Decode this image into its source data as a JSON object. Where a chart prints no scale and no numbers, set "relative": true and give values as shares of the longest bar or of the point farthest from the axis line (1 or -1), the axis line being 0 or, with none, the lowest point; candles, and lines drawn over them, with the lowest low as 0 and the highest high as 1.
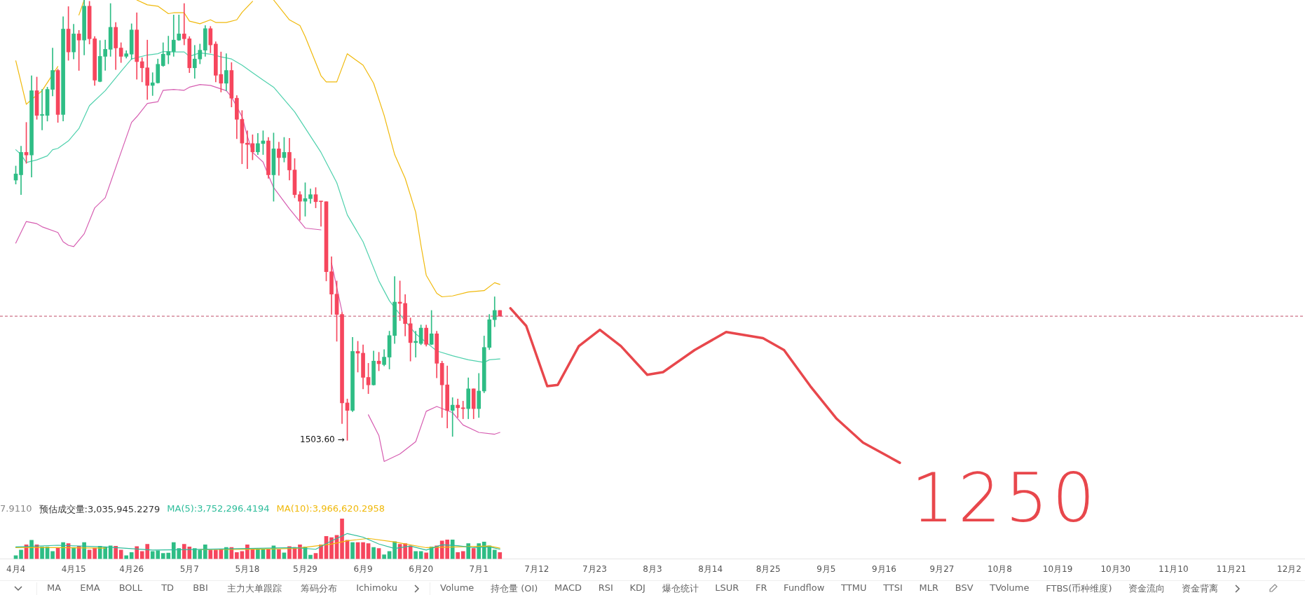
{
  "chart_data": [
    {
      "type": "candlestick",
      "relative": true,
      "tick_labels": false,
      "xlim": [
        "--04-01",
        "--12-05"
      ],
      "x": [
        "--04-04",
        "--04-05",
        "--04-06",
        "--04-07",
        "--04-08",
        "--04-09",
        "--04-10",
        "--04-11",
        "--04-12",
        "--04-13",
        "--04-14",
        "--04-15",
        "--04-16",
        "--04-17",
        "--04-18",
        "--04-19",
        "--04-20",
        "--04-21",
        "--04-22",
        "--04-23",
        "--04-24",
        "--04-25",
        "--04-26",
        "--04-27",
        "--04-28",
        "--04-29",
        "--04-30",
        "--05-01",
        "--05-02",
        "--05-03",
        "--05-04",
        "--05-05",
        "--05-06",
        "--05-07",
        "--05-08",
        "--05-09",
        "--05-10",
        "--05-11",
        "--05-12",
        "--05-13",
        "--05-14",
        "--05-15",
        "--05-16",
        "--05-17",
        "--05-18",
        "--05-19",
        "--05-20",
        "--05-21",
        "--05-22",
        "--05-23",
        "--05-24",
        "--05-25",
        "--05-26",
        "--05-27",
        "--05-28",
        "--05-29",
        "--05-30",
        "--05-31",
        "--06-01",
        "--06-02",
        "--06-03",
        "--06-04",
        "--06-05",
        "--06-06",
        "--06-07",
        "--06-08",
        "--06-09",
        "--06-10",
        "--06-11",
        "--06-12",
        "--06-13",
        "--06-14",
        "--06-15",
        "--06-16",
        "--06-17",
        "--06-18",
        "--06-19",
        "--06-20",
        "--06-21",
        "--06-22",
        "--06-23",
        "--06-24",
        "--06-25",
        "--06-26",
        "--06-27",
        "--06-28",
        "--06-29",
        "--06-30",
        "--07-01",
        "--07-02",
        "--07-03",
        "--07-04",
        "--07-05"
      ],
      "ohlc": [
        [
          0.591,
          0.623,
          0.582,
          0.605
        ],
        [
          0.603,
          0.668,
          0.558,
          0.654
        ],
        [
          0.654,
          0.722,
          0.629,
          0.648
        ],
        [
          0.648,
          0.828,
          0.598,
          0.794
        ],
        [
          0.794,
          0.825,
          0.729,
          0.738
        ],
        [
          0.738,
          0.797,
          0.705,
          0.74
        ],
        [
          0.738,
          0.802,
          0.725,
          0.797
        ],
        [
          0.797,
          0.891,
          0.782,
          0.84
        ],
        [
          0.84,
          0.843,
          0.722,
          0.74
        ],
        [
          0.74,
          0.962,
          0.725,
          0.934
        ],
        [
          0.934,
          0.985,
          0.863,
          0.882
        ],
        [
          0.882,
          0.945,
          0.866,
          0.923
        ],
        [
          0.923,
          0.931,
          0.84,
          0.909
        ],
        [
          0.909,
          1,
          0.875,
          0.986
        ],
        [
          0.986,
          0.997,
          0.9,
          0.912
        ],
        [
          0.912,
          0.917,
          0.806,
          0.818
        ],
        [
          0.815,
          0.908,
          0.814,
          0.872
        ],
        [
          0.872,
          0.909,
          0.84,
          0.888
        ],
        [
          0.888,
          0.992,
          0.872,
          0.938
        ],
        [
          0.938,
          0.949,
          0.842,
          0.891
        ],
        [
          0.891,
          0.903,
          0.858,
          0.872
        ],
        [
          0.872,
          0.885,
          0.868,
          0.878
        ],
        [
          0.877,
          0.946,
          0.865,
          0.932
        ],
        [
          0.932,
          0.971,
          0.82,
          0.86
        ],
        [
          0.86,
          0.869,
          0.814,
          0.846
        ],
        [
          0.846,
          0.909,
          0.774,
          0.806
        ],
        [
          0.806,
          0.835,
          0.783,
          0.812
        ],
        [
          0.812,
          0.866,
          0.811,
          0.854
        ],
        [
          0.851,
          0.903,
          0.849,
          0.877
        ],
        [
          0.875,
          0.918,
          0.855,
          0.883
        ],
        [
          0.883,
          0.966,
          0.872,
          0.909
        ],
        [
          0.909,
          0.966,
          0.908,
          0.923
        ],
        [
          0.923,
          0.992,
          0.898,
          0.912
        ],
        [
          0.912,
          0.917,
          0.835,
          0.846
        ],
        [
          0.846,
          0.897,
          0.822,
          0.866
        ],
        [
          0.866,
          0.9,
          0.855,
          0.886
        ],
        [
          0.886,
          0.942,
          0.872,
          0.935
        ],
        [
          0.935,
          0.94,
          0.88,
          0.898
        ],
        [
          0.9,
          0.905,
          0.814,
          0.829
        ],
        [
          0.831,
          0.882,
          0.791,
          0.811
        ],
        [
          0.811,
          0.878,
          0.794,
          0.84
        ],
        [
          0.84,
          0.858,
          0.757,
          0.777
        ],
        [
          0.777,
          0.783,
          0.685,
          0.729
        ],
        [
          0.729,
          0.749,
          0.628,
          0.675
        ],
        [
          0.675,
          0.703,
          0.617,
          0.672
        ],
        [
          0.674,
          0.694,
          0.637,
          0.655
        ],
        [
          0.655,
          0.697,
          0.649,
          0.674
        ],
        [
          0.674,
          0.703,
          0.649,
          0.68
        ],
        [
          0.68,
          0.688,
          0.595,
          0.603
        ],
        [
          0.603,
          0.698,
          0.543,
          0.662
        ],
        [
          0.662,
          0.677,
          0.602,
          0.642
        ],
        [
          0.642,
          0.688,
          0.632,
          0.654
        ],
        [
          0.654,
          0.686,
          0.591,
          0.614
        ],
        [
          0.614,
          0.64,
          0.551,
          0.558
        ],
        [
          0.558,
          0.565,
          0.5,
          0.543
        ],
        [
          0.543,
          0.585,
          0.509,
          0.549
        ],
        [
          0.549,
          0.571,
          0.538,
          0.558
        ],
        [
          0.558,
          0.574,
          0.528,
          0.542
        ],
        [
          0.543,
          0.543,
          0.486,
          0.542
        ],
        [
          0.542,
          0.542,
          0.362,
          0.383
        ],
        [
          0.383,
          0.417,
          0.286,
          0.332
        ],
        [
          0.332,
          0.362,
          0.225,
          0.286
        ],
        [
          0.286,
          0.291,
          0.038,
          0.085
        ],
        [
          0.085,
          0.094,
          0,
          0.068
        ],
        [
          0.068,
          0.234,
          0.065,
          0.202
        ],
        [
          0.202,
          0.225,
          0.155,
          0.198
        ],
        [
          0.198,
          0.217,
          0.117,
          0.143
        ],
        [
          0.143,
          0.175,
          0.106,
          0.126
        ],
        [
          0.126,
          0.203,
          0.125,
          0.18
        ],
        [
          0.18,
          0.2,
          0.158,
          0.174
        ],
        [
          0.172,
          0.206,
          0.169,
          0.189
        ],
        [
          0.189,
          0.248,
          0.162,
          0.238
        ],
        [
          0.238,
          0.372,
          0.22,
          0.314
        ],
        [
          0.314,
          0.362,
          0.272,
          0.311
        ],
        [
          0.311,
          0.331,
          0.237,
          0.265
        ],
        [
          0.265,
          0.278,
          0.18,
          0.222
        ],
        [
          0.222,
          0.248,
          0.189,
          0.225
        ],
        [
          0.22,
          0.262,
          0.217,
          0.255
        ],
        [
          0.255,
          0.262,
          0.214,
          0.218
        ],
        [
          0.218,
          0.295,
          0.217,
          0.242
        ],
        [
          0.242,
          0.248,
          0.142,
          0.175
        ],
        [
          0.175,
          0.18,
          0.052,
          0.126
        ],
        [
          0.126,
          0.169,
          0.028,
          0.068
        ],
        [
          0.068,
          0.097,
          0.009,
          0.08
        ],
        [
          0.08,
          0.094,
          0.052,
          0.074
        ],
        [
          0.074,
          0.089,
          0.049,
          0.072
        ],
        [
          0.072,
          0.142,
          0.049,
          0.117
        ],
        [
          0.117,
          0.117,
          0.049,
          0.072
        ],
        [
          0.072,
          0.152,
          0.052,
          0.112
        ],
        [
          0.112,
          0.237,
          0.108,
          0.211
        ],
        [
          0.211,
          0.286,
          0.206,
          0.274
        ],
        [
          0.274,
          0.326,
          0.258,
          0.295
        ],
        [
          0.295,
          0.295,
          0.282,
          0.282
        ]
      ],
      "colors": [
        "#2ebd85",
        "#2ebd85",
        "#f6465d",
        "#2ebd85",
        "#f6465d",
        "#2ebd85",
        "#2ebd85",
        "#2ebd85",
        "#f6465d",
        "#2ebd85",
        "#f6465d",
        "#2ebd85",
        "#f6465d",
        "#2ebd85",
        "#f6465d",
        "#f6465d",
        "#2ebd85",
        "#2ebd85",
        "#2ebd85",
        "#f6465d",
        "#f6465d",
        "#2ebd85",
        "#2ebd85",
        "#f6465d",
        "#f6465d",
        "#f6465d",
        "#2ebd85",
        "#2ebd85",
        "#2ebd85",
        "#2ebd85",
        "#2ebd85",
        "#2ebd85",
        "#f6465d",
        "#f6465d",
        "#2ebd85",
        "#2ebd85",
        "#2ebd85",
        "#f6465d",
        "#f6465d",
        "#f6465d",
        "#2ebd85",
        "#f6465d",
        "#f6465d",
        "#f6465d",
        "#f6465d",
        "#f6465d",
        "#2ebd85",
        "#2ebd85",
        "#f6465d",
        "#2ebd85",
        "#f6465d",
        "#2ebd85",
        "#f6465d",
        "#f6465d",
        "#f6465d",
        "#2ebd85",
        "#2ebd85",
        "#f6465d",
        "#f6465d",
        "#f6465d",
        "#f6465d",
        "#f6465d",
        "#f6465d",
        "#f6465d",
        "#2ebd85",
        "#f6465d",
        "#f6465d",
        "#f6465d",
        "#2ebd85",
        "#f6465d",
        "#2ebd85",
        "#2ebd85",
        "#2ebd85",
        "#f6465d",
        "#f6465d",
        "#f6465d",
        "#2ebd85",
        "#2ebd85",
        "#f6465d",
        "#2ebd85",
        "#f6465d",
        "#f6465d",
        "#f6465d",
        "#2ebd85",
        "#f6465d",
        "#f6465d",
        "#2ebd85",
        "#f6465d",
        "#2ebd85",
        "#2ebd85",
        "#2ebd85",
        "#2ebd85",
        "#f6465d"
      ],
      "series": [
        {
          "type": "line",
          "color": "#f0b90b",
          "x": [
            "--04-04",
            "--04-06",
            "--04-07",
            "--04-09",
            "--04-12",
            "--04-14",
            "--04-16",
            "--04-17",
            "--04-22",
            "--04-27",
            "--04-29",
            "--05-01",
            "--05-03",
            "--05-04",
            "--05-06",
            "--05-07",
            "--05-09",
            "--05-11",
            "--05-12",
            "--05-14",
            "--05-16",
            "--05-17",
            "--05-19",
            "--05-21",
            "--05-23",
            "--05-26",
            "--05-28",
            "--05-29",
            "--06-01",
            "--06-02",
            "--06-04",
            "--06-06",
            "--06-09",
            "--06-11",
            "--06-13",
            "--06-15",
            "--06-17",
            "--06-19",
            "--06-20",
            "--06-21",
            "--06-23",
            "--06-24",
            "--06-26",
            "--06-29",
            "--07-02",
            "--07-04",
            "--07-05"
          ],
          "values": [
            0.862,
            0.763,
            0.774,
            0.794,
            0.849,
            null,
            0.966,
            1,
            null,
            1,
            0.989,
            0.986,
            0.969,
            0.971,
            0.971,
            0.952,
            0.946,
            0.955,
            0.949,
            0.949,
            0.955,
            0.972,
            0.997,
            null,
            1,
            0.955,
            0.942,
            0.917,
            0.828,
            0.814,
            0.814,
            0.878,
            0.852,
            0.811,
            0.738,
            0.649,
            0.595,
            0.518,
            0.443,
            0.375,
            0.334,
            0.326,
            0.328,
            0.337,
            0.34,
            0.358,
            0.354
          ]
        },
        {
          "type": "line",
          "color": "#4fd1ad",
          "x": [
            "--04-04",
            "--04-05",
            "--04-06",
            "--04-08",
            "--04-10",
            "--04-11",
            "--04-12",
            "--04-14",
            "--04-16",
            "--04-18",
            "--04-21",
            "--04-24",
            "--04-26",
            "--04-29",
            "--05-01",
            "--05-02",
            "--05-04",
            "--05-06",
            "--05-07",
            "--05-09",
            "--05-11",
            "--05-13",
            "--05-15",
            "--05-17",
            "--05-19",
            "--05-21",
            "--05-23",
            "--05-27",
            "--06-01",
            "--06-04",
            "--06-06",
            "--06-09",
            "--06-12",
            "--06-14",
            "--06-16",
            "--06-19",
            "--06-23",
            "--06-26",
            "--06-29",
            "--07-02",
            "--07-03",
            "--07-05"
          ],
          "values": [
            0.66,
            0.649,
            0.631,
            0.637,
            0.646,
            0.66,
            0.663,
            0.68,
            0.708,
            0.76,
            0.794,
            0.838,
            0.866,
            0.875,
            0.878,
            0.883,
            0.882,
            0.882,
            0.872,
            0.88,
            0.877,
            0.871,
            0.866,
            0.852,
            0.835,
            0.818,
            0.802,
            0.746,
            0.654,
            0.585,
            0.512,
            0.451,
            0.362,
            0.317,
            0.286,
            0.242,
            0.203,
            0.192,
            0.183,
            0.177,
            0.183,
            0.185
          ]
        },
        {
          "type": "line",
          "color": "#d65db1",
          "x": [
            "--04-04",
            "--04-06",
            "--04-08",
            "--04-09",
            "--04-12",
            "--04-13",
            "--04-14",
            "--04-15",
            "--04-17",
            "--04-19",
            "--04-21",
            "--04-24",
            "--04-26",
            "--04-27",
            "--04-29",
            "--05-01",
            "--05-02",
            "--05-04",
            "--05-06",
            "--05-07",
            "--05-09",
            "--05-11",
            "--05-12",
            "--05-14",
            "--05-15",
            "--05-17",
            "--05-18",
            "--05-19",
            "--05-21",
            "--05-22",
            "--05-23",
            "--05-26",
            "--05-29",
            "--06-01",
            "--06-02",
            "--06-03",
            "--06-05",
            "--06-07",
            "--06-10",
            "--06-12",
            "--06-13",
            "--06-16",
            "--06-19",
            "--06-21",
            "--06-23",
            "--06-26",
            "--06-28",
            "--07-01",
            "--07-04",
            "--07-05"
          ],
          "values": [
            0.448,
            0.497,
            0.492,
            0.485,
            0.472,
            0.451,
            0.443,
            0.44,
            0.469,
            0.528,
            0.551,
            0.654,
            0.722,
            0.735,
            0.765,
            0.769,
            0.795,
            0.797,
            0.795,
            0.802,
            0.808,
            0.806,
            0.802,
            0.794,
            0.78,
            0.735,
            0.691,
            0.654,
            0.632,
            0.602,
            0.574,
            0.526,
            0.482,
            0.478,
            null,
            0.403,
            0.292,
            null,
            0.058,
            0.011,
            -0.048,
            -0.031,
            -0.003,
            0.066,
            0.077,
            0.063,
            0.035,
            0.018,
            0.014,
            0.018
          ]
        },
        {
          "type": "line",
          "color": "#e8474c",
          "x": [
            "--07-07",
            "--07-10",
            "--07-14",
            "--07-16",
            "--07-20",
            "--07-24",
            "--07-28",
            "--08-02",
            "--08-05",
            "--08-11",
            "--08-17",
            "--08-24",
            "--08-28",
            "--09-02",
            "--09-07",
            "--09-12",
            "--09-19"
          ],
          "values": [
            0.3,
            0.26,
            0.123,
            0.126,
            0.214,
            0.251,
            0.214,
            0.149,
            0.155,
            0.205,
            0.246,
            0.232,
            0.205,
            0.123,
            0.049,
            -0.005,
            -0.051
          ]
        }
      ],
      "ref_lines": [
        {
          "axis": "y",
          "value": 0.282,
          "color": "#c0506a",
          "line_style": "dashed"
        }
      ],
      "annotations": [
        {
          "text": "1503.60 →",
          "x": "--06-06",
          "y": 0
        },
        "1250"
      ]
    },
    {
      "type": "bar",
      "relative": true,
      "tick_labels": "x",
      "legend": "top left",
      "xlim": [
        "--04-01",
        "--12-05"
      ],
      "xticks": [
        {
          "value": "--04-04",
          "label": "4月4"
        },
        {
          "value": "--04-15",
          "label": "4月15"
        },
        {
          "value": "--04-26",
          "label": "4月26"
        },
        {
          "value": "--05-07",
          "label": "5月7"
        },
        {
          "value": "--05-18",
          "label": "5月18"
        },
        {
          "value": "--05-29",
          "label": "5月29"
        },
        {
          "value": "--06-09",
          "label": "6月9"
        },
        {
          "value": "--06-20",
          "label": "6月20"
        },
        {
          "value": "--07-01",
          "label": "7月1"
        },
        {
          "value": "--07-12",
          "label": "7月12"
        },
        {
          "value": "--07-23",
          "label": "7月23"
        },
        {
          "value": "--08-03",
          "label": "8月3"
        },
        {
          "value": "--08-14",
          "label": "8月14"
        },
        {
          "value": "--08-25",
          "label": "8月25"
        },
        {
          "value": "--09-05",
          "label": "9月5"
        },
        {
          "value": "--09-16",
          "label": "9月16"
        },
        {
          "value": "--09-27",
          "label": "9月27"
        },
        {
          "value": "--10-08",
          "label": "10月8"
        },
        {
          "value": "--10-19",
          "label": "10月19"
        },
        {
          "value": "--10-30",
          "label": "10月30"
        },
        {
          "value": "--11-10",
          "label": "11月10"
        },
        {
          "value": "--11-21",
          "label": "11月21"
        },
        {
          "value": "--12-02",
          "label": "12月2"
        }
      ],
      "x": [
        "--04-04",
        "--04-05",
        "--04-06",
        "--04-07",
        "--04-08",
        "--04-09",
        "--04-10",
        "--04-11",
        "--04-12",
        "--04-13",
        "--04-14",
        "--04-15",
        "--04-16",
        "--04-17",
        "--04-18",
        "--04-19",
        "--04-20",
        "--04-21",
        "--04-22",
        "--04-23",
        "--04-24",
        "--04-25",
        "--04-26",
        "--04-27",
        "--04-28",
        "--04-29",
        "--04-30",
        "--05-01",
        "--05-02",
        "--05-03",
        "--05-04",
        "--05-05",
        "--05-06",
        "--05-07",
        "--05-08",
        "--05-09",
        "--05-10",
        "--05-11",
        "--05-12",
        "--05-13",
        "--05-14",
        "--05-15",
        "--05-16",
        "--05-17",
        "--05-18",
        "--05-19",
        "--05-20",
        "--05-21",
        "--05-22",
        "--05-23",
        "--05-24",
        "--05-25",
        "--05-26",
        "--05-27",
        "--05-28",
        "--05-29",
        "--05-30",
        "--05-31",
        "--06-01",
        "--06-02",
        "--06-03",
        "--06-04",
        "--06-05",
        "--06-06",
        "--06-07",
        "--06-08",
        "--06-09",
        "--06-10",
        "--06-11",
        "--06-12",
        "--06-13",
        "--06-14",
        "--06-15",
        "--06-16",
        "--06-17",
        "--06-18",
        "--06-19",
        "--06-20",
        "--06-21",
        "--06-22",
        "--06-23",
        "--06-24",
        "--06-25",
        "--06-26",
        "--06-27",
        "--06-28",
        "--06-29",
        "--06-30",
        "--07-01",
        "--07-02",
        "--07-03",
        "--07-04",
        "--07-05"
      ],
      "series": [
        {
          "type": "bar",
          "values": [
            0.081,
            0.22,
            0.35,
            0.463,
            0.35,
            0.301,
            0.301,
            0.187,
            0.268,
            0.407,
            0.382,
            0.285,
            0.317,
            0.407,
            0.22,
            0.268,
            0.317,
            0.285,
            0.325,
            0.317,
            0.22,
            0.081,
            0.163,
            0.309,
            0.187,
            0.366,
            0.187,
            0.203,
            0.138,
            0.146,
            0.407,
            0.26,
            0.366,
            0.301,
            0.26,
            0.22,
            0.35,
            0.22,
            0.22,
            0.236,
            0.285,
            0.285,
            0.163,
            0.187,
            0.35,
            0.236,
            0.236,
            0.236,
            0.236,
            0.325,
            0.236,
            0.154,
            0.309,
            0.285,
            0.35,
            0.301,
            0.098,
            0.138,
            0.35,
            0.561,
            0.528,
            0.585,
            1,
            0.463,
            0.407,
            0.407,
            0.407,
            0.382,
            0.285,
            0.26,
            0.106,
            0.187,
            0.431,
            0.366,
            0.382,
            0.325,
            0.187,
            0.187,
            0.154,
            0.301,
            0.325,
            0.447,
            0.472,
            0.472,
            0.163,
            0.187,
            0.382,
            0.26,
            0.382,
            0.423,
            0.325,
            0.22,
            0.163
          ],
          "colors": [
            "#2ebd85",
            "#2ebd85",
            "#f6465d",
            "#2ebd85",
            "#f6465d",
            "#2ebd85",
            "#2ebd85",
            "#2ebd85",
            "#f6465d",
            "#2ebd85",
            "#f6465d",
            "#2ebd85",
            "#f6465d",
            "#2ebd85",
            "#f6465d",
            "#f6465d",
            "#2ebd85",
            "#2ebd85",
            "#2ebd85",
            "#f6465d",
            "#f6465d",
            "#2ebd85",
            "#2ebd85",
            "#f6465d",
            "#f6465d",
            "#f6465d",
            "#2ebd85",
            "#2ebd85",
            "#2ebd85",
            "#2ebd85",
            "#2ebd85",
            "#2ebd85",
            "#f6465d",
            "#f6465d",
            "#2ebd85",
            "#2ebd85",
            "#2ebd85",
            "#f6465d",
            "#f6465d",
            "#f6465d",
            "#2ebd85",
            "#f6465d",
            "#f6465d",
            "#f6465d",
            "#f6465d",
            "#f6465d",
            "#2ebd85",
            "#2ebd85",
            "#f6465d",
            "#2ebd85",
            "#f6465d",
            "#2ebd85",
            "#f6465d",
            "#f6465d",
            "#f6465d",
            "#2ebd85",
            "#2ebd85",
            "#f6465d",
            "#f6465d",
            "#f6465d",
            "#f6465d",
            "#f6465d",
            "#f6465d",
            "#f6465d",
            "#2ebd85",
            "#f6465d",
            "#f6465d",
            "#f6465d",
            "#2ebd85",
            "#f6465d",
            "#2ebd85",
            "#2ebd85",
            "#2ebd85",
            "#f6465d",
            "#f6465d",
            "#f6465d",
            "#2ebd85",
            "#2ebd85",
            "#f6465d",
            "#2ebd85",
            "#f6465d",
            "#f6465d",
            "#f6465d",
            "#2ebd85",
            "#f6465d",
            "#f6465d",
            "#2ebd85",
            "#f6465d",
            "#2ebd85",
            "#2ebd85",
            "#2ebd85",
            "#2ebd85",
            "#f6465d"
          ]
        },
        {
          "type": "line",
          "name": "MA(5):3,752,296.4194",
          "color": "#2ebd9b",
          "x": [
            "--04-04",
            "--04-12",
            "--04-21",
            "--04-30",
            "--05-09",
            "--05-18",
            "--05-27",
            "--05-31",
            "--06-03",
            "--06-06",
            "--06-09",
            "--06-12",
            "--06-15",
            "--06-18",
            "--06-21",
            "--06-24",
            "--06-27",
            "--06-30",
            "--07-03",
            "--07-05"
          ],
          "values": [
            0.3,
            0.34,
            0.3,
            0.22,
            0.24,
            0.26,
            0.28,
            0.24,
            0.45,
            0.63,
            0.54,
            0.37,
            0.26,
            0.32,
            0.22,
            0.35,
            0.33,
            0.28,
            0.3,
            0.24
          ]
        },
        {
          "type": "line",
          "name": "MA(10):3,966,620.2958",
          "color": "#f0b90b",
          "x": [
            "--04-04",
            "--04-12",
            "--04-21",
            "--04-30",
            "--05-09",
            "--05-18",
            "--05-27",
            "--06-03",
            "--06-06",
            "--06-10",
            "--06-15",
            "--06-21",
            "--06-27",
            "--07-03",
            "--07-05"
          ],
          "values": [
            0.28,
            0.28,
            0.27,
            null,
            0.24,
            0.24,
            0.26,
            0.37,
            0.45,
            0.51,
            0.42,
            0.28,
            0.3,
            0.32,
            0.27
          ]
        }
      ],
      "annotations": [
        "7.9110",
        "预估成交量:3,035,945.2279"
      ]
    },
    {
      "type": "other",
      "annotations": [
        "MA",
        "EMA",
        "BOLL",
        "TD",
        "BBI",
        "主力大单跟踪",
        "筹码分布",
        "Ichimoku",
        "Volume",
        "持仓量 (OI)",
        "MACD",
        "RSI",
        "KDJ",
        "爆仓统计",
        "LSUR",
        "FR",
        "Fundflow",
        "TTMU",
        "TTSI",
        "MLR",
        "BSV",
        "TVolume",
        "FTBS(币种维度)",
        "资金流向",
        "资金背离"
      ]
    }
  ]
}
